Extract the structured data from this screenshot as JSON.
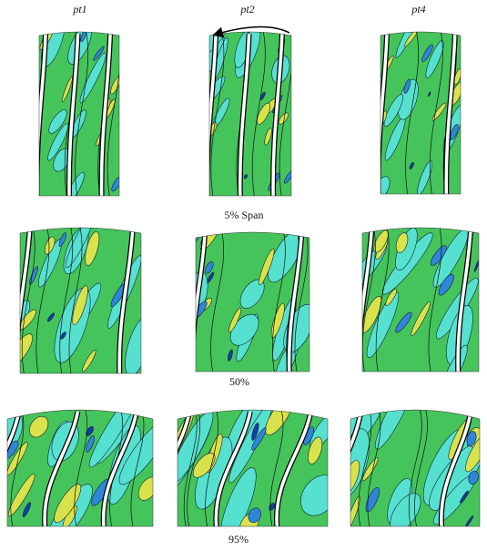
{
  "columns": [
    "pt1",
    "pt2",
    "pt4"
  ],
  "rows": [
    "5% Span",
    "50%",
    "95%"
  ]
}
